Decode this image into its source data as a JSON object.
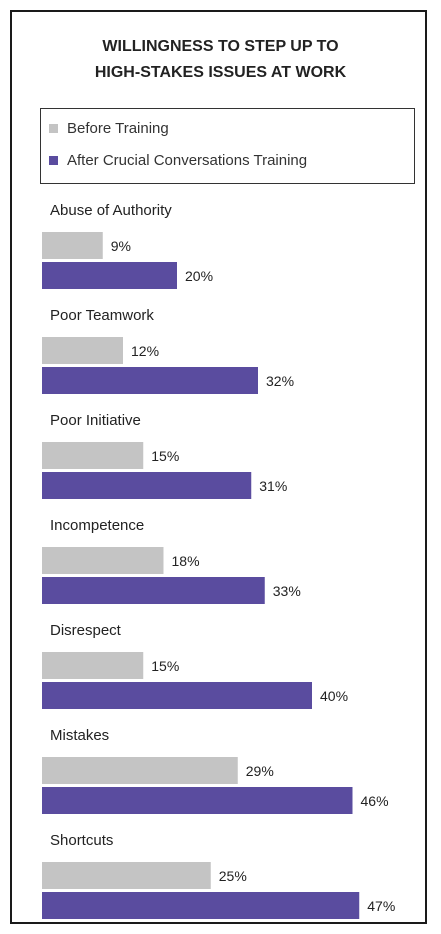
{
  "chart_data": {
    "type": "bar",
    "orientation": "horizontal",
    "title_lines": [
      "WILLINGNESS TO STEP UP TO",
      "HIGH-STAKES ISSUES AT WORK"
    ],
    "categories": [
      "Abuse of Authority",
      "Poor Teamwork",
      "Poor Initiative",
      "Incompetence",
      "Disrespect",
      "Mistakes",
      "Shortcuts"
    ],
    "series": [
      {
        "name": "Before Training",
        "values": [
          9,
          12,
          15,
          18,
          15,
          29,
          25
        ],
        "labels": [
          "9%",
          "12%",
          "15%",
          "18%",
          "15%",
          "29%",
          "25%"
        ],
        "color": "#c4c4c4"
      },
      {
        "name": "After Crucial Conversations Training",
        "values": [
          20,
          32,
          31,
          33,
          40,
          46,
          47
        ],
        "labels": [
          "20%",
          "32%",
          "31%",
          "33%",
          "40%",
          "46%",
          "47%"
        ],
        "color": "#5a4c9f"
      }
    ],
    "value_unit": "%",
    "grid": false,
    "legend_position": "top"
  }
}
